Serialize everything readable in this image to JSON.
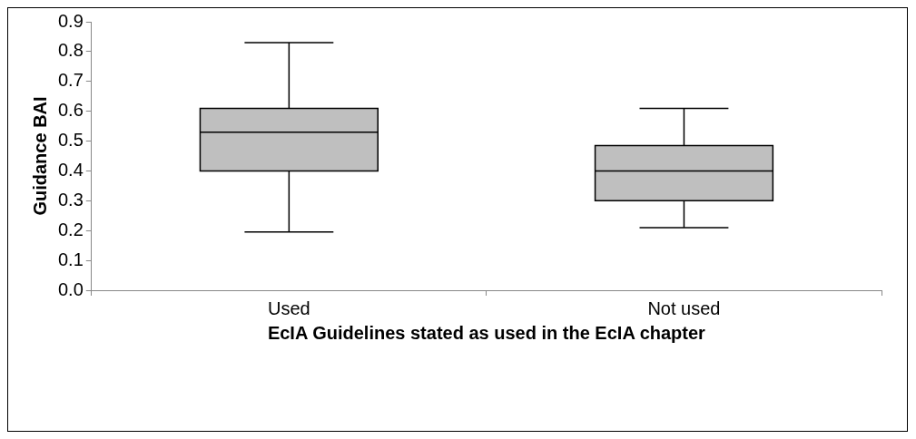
{
  "chart_data": {
    "type": "box",
    "xlabel": "EcIA Guidelines stated as used in the EcIA chapter",
    "ylabel": "Guidance BAI",
    "categories": [
      "Used",
      "Not used"
    ],
    "boxes": [
      {
        "low": 0.195,
        "q1": 0.4,
        "median": 0.53,
        "q3": 0.61,
        "high": 0.83
      },
      {
        "low": 0.21,
        "q1": 0.3,
        "median": 0.4,
        "q3": 0.485,
        "high": 0.61
      }
    ],
    "color": "#bfbfbf",
    "ylim": [
      0,
      0.9
    ],
    "yticks": [
      {
        "value": 0,
        "label": "0.0"
      },
      0.1,
      0.2,
      0.3,
      0.4,
      0.5,
      0.6,
      0.7,
      0.8,
      0.9
    ],
    "grid": false
  }
}
